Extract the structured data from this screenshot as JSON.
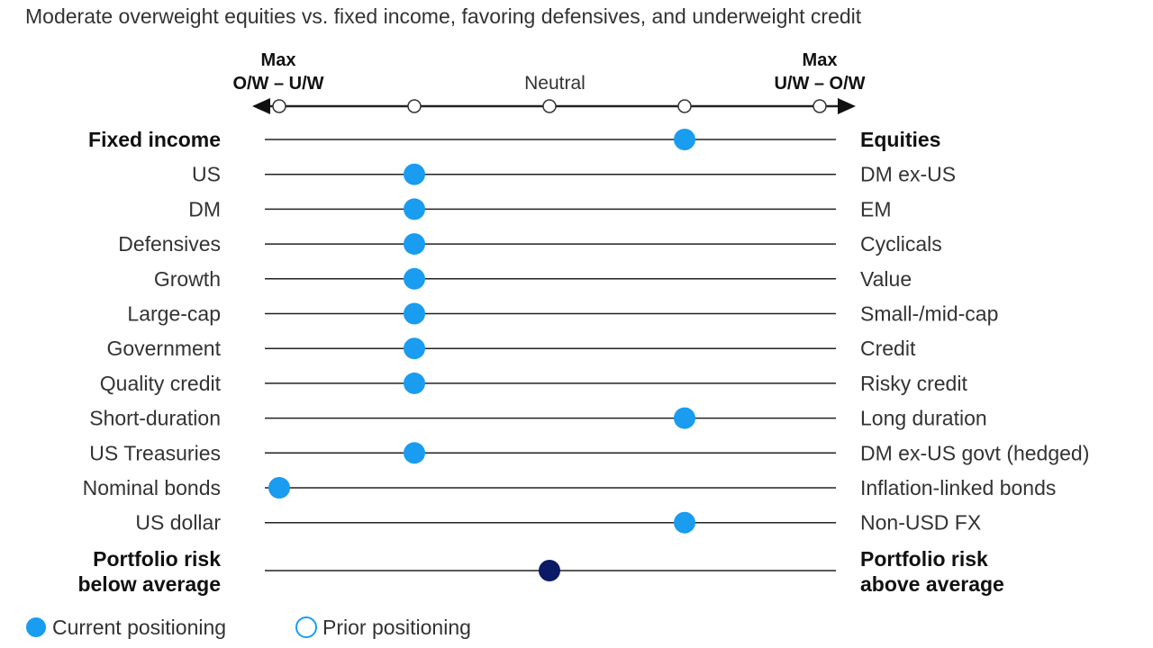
{
  "chart_data": {
    "type": "dot-scale",
    "title": "Moderate overweight equities vs. fixed income, favoring defensives, and underweight credit",
    "scale": {
      "left_header_line1": "Max",
      "left_header_line2": "O/W – U/W",
      "right_header_line1": "Max",
      "right_header_line2": "U/W – O/W",
      "center_label": "Neutral",
      "positions": [
        -2,
        -1,
        0,
        1,
        2
      ]
    },
    "rows": [
      {
        "left": [
          "Fixed income"
        ],
        "right": [
          "Equities"
        ],
        "current": 1,
        "bold": true
      },
      {
        "left": [
          "US"
        ],
        "right": [
          "DM ex-US"
        ],
        "current": -1,
        "bold": false
      },
      {
        "left": [
          "DM"
        ],
        "right": [
          "EM"
        ],
        "current": -1,
        "bold": false
      },
      {
        "left": [
          "Defensives"
        ],
        "right": [
          "Cyclicals"
        ],
        "current": -1,
        "bold": false
      },
      {
        "left": [
          "Growth"
        ],
        "right": [
          "Value"
        ],
        "current": -1,
        "bold": false
      },
      {
        "left": [
          "Large-cap"
        ],
        "right": [
          "Small-/mid-cap"
        ],
        "current": -1,
        "bold": false
      },
      {
        "left": [
          "Government"
        ],
        "right": [
          "Credit"
        ],
        "current": -1,
        "bold": false
      },
      {
        "left": [
          "Quality credit"
        ],
        "right": [
          "Risky credit"
        ],
        "current": -1,
        "bold": false
      },
      {
        "left": [
          "Short-duration"
        ],
        "right": [
          "Long duration"
        ],
        "current": 1,
        "bold": false
      },
      {
        "left": [
          "US Treasuries"
        ],
        "right": [
          "DM ex-US govt (hedged)"
        ],
        "current": -1,
        "bold": false
      },
      {
        "left": [
          "Nominal bonds"
        ],
        "right": [
          "Inflation-linked bonds"
        ],
        "current": -2,
        "bold": false
      },
      {
        "left": [
          "US dollar"
        ],
        "right": [
          "Non-USD FX"
        ],
        "current": 1,
        "bold": false
      },
      {
        "left": [
          "Portfolio risk",
          "below average"
        ],
        "right": [
          "Portfolio risk",
          "above average"
        ],
        "current": 0,
        "bold": true,
        "risk": true
      }
    ],
    "legend": [
      {
        "label": "Current positioning",
        "style": "filled"
      },
      {
        "label": "Prior positioning",
        "style": "hollow"
      }
    ],
    "colors": {
      "current": "#1a9cf0",
      "risk": "#0b1a66",
      "hollow_stroke": "#1a9cf0",
      "line": "#222222"
    }
  }
}
